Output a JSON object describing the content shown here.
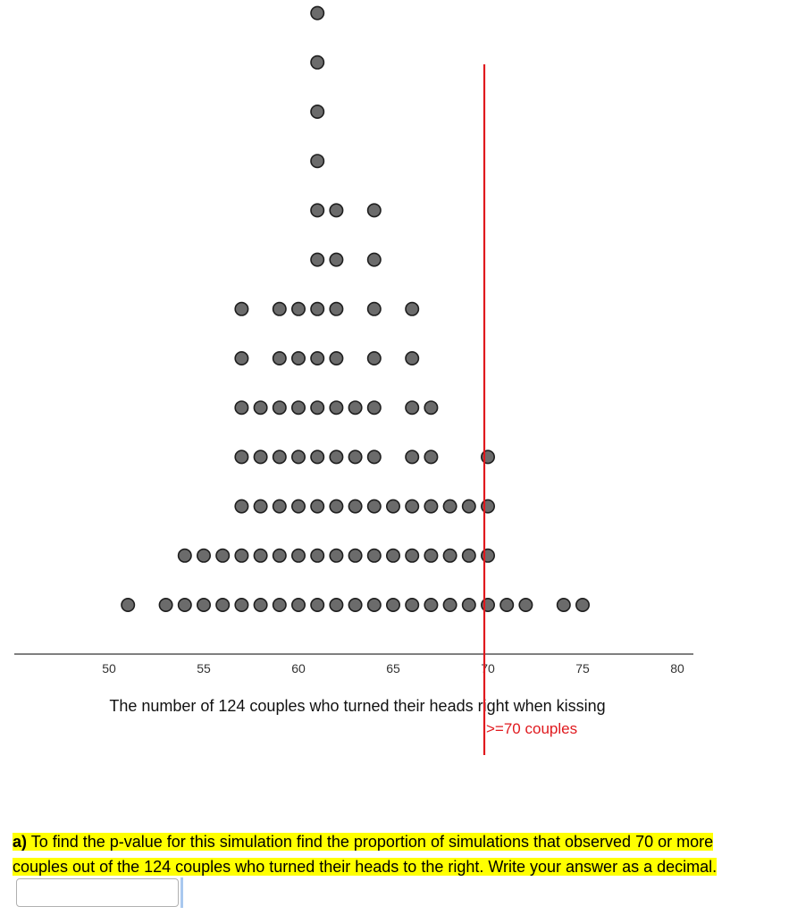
{
  "chart_data": {
    "type": "scatter",
    "subtype": "dotplot",
    "xlabel": "The number of 124 couples who turned their heads right when kissing",
    "xlim": [
      50,
      80
    ],
    "x_ticks": [
      50,
      55,
      60,
      65,
      70,
      75,
      80
    ],
    "grid": false,
    "colors": {
      "dot_fill": "#6b6b6b",
      "dot_stroke": "#1e1e1e",
      "cutoff_line": "#e0191e",
      "axis": "#333333"
    },
    "counts": [
      {
        "x": 51,
        "count": 1
      },
      {
        "x": 53,
        "count": 1
      },
      {
        "x": 54,
        "count": 2
      },
      {
        "x": 55,
        "count": 2
      },
      {
        "x": 56,
        "count": 2
      },
      {
        "x": 57,
        "count": 7
      },
      {
        "x": 58,
        "count": 5
      },
      {
        "x": 59,
        "count": 7
      },
      {
        "x": 60,
        "count": 7
      },
      {
        "x": 61,
        "count": 13
      },
      {
        "x": 62,
        "count": 9
      },
      {
        "x": 63,
        "count": 5
      },
      {
        "x": 64,
        "count": 9
      },
      {
        "x": 65,
        "count": 3
      },
      {
        "x": 66,
        "count": 7
      },
      {
        "x": 67,
        "count": 5
      },
      {
        "x": 68,
        "count": 3
      },
      {
        "x": 69,
        "count": 3
      },
      {
        "x": 70,
        "count": 4
      },
      {
        "x": 71,
        "count": 1
      },
      {
        "x": 72,
        "count": 1
      },
      {
        "x": 74,
        "count": 1
      },
      {
        "x": 75,
        "count": 1
      }
    ],
    "cutoff": {
      "x": 70,
      "label": ">=70 couples"
    }
  },
  "question": {
    "part_label": "a)",
    "text": " To find the p-value for this simulation find the proportion of simulations that observed 70 or more couples out of the 124 couples who turned their heads to the right. Write your answer as a decimal.",
    "answer_value": ""
  }
}
